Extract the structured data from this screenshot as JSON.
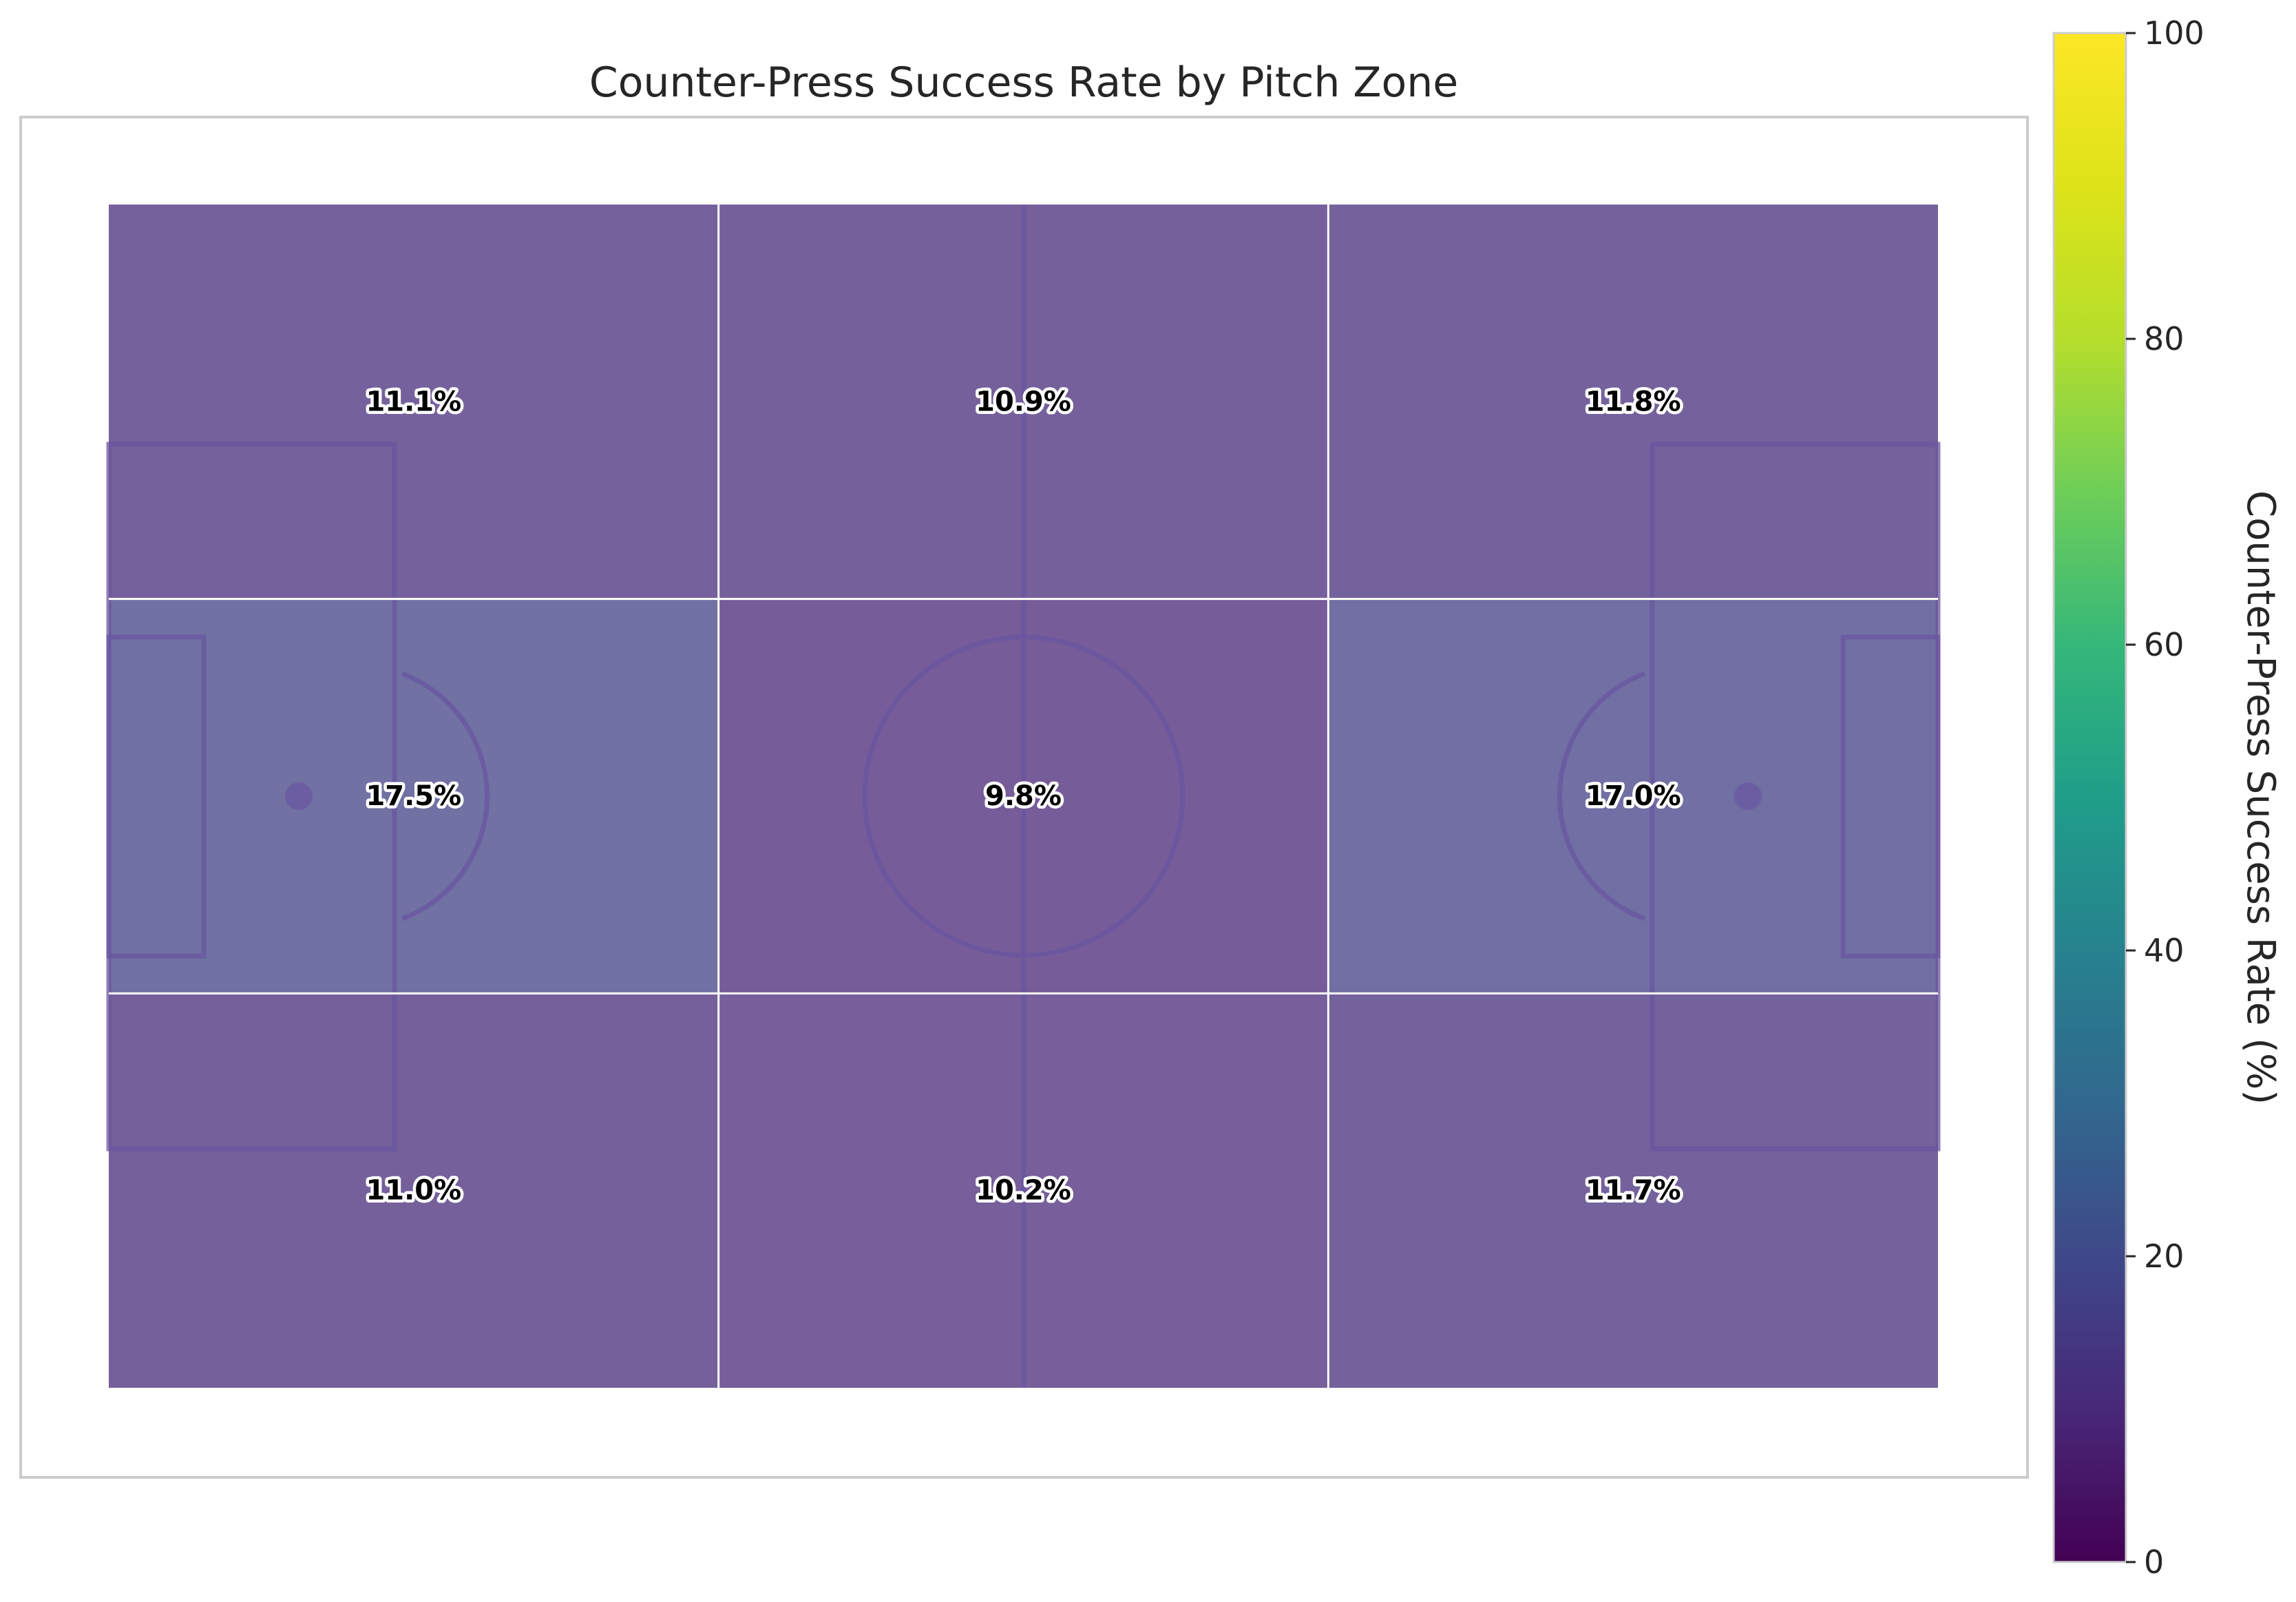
{
  "chart_data": {
    "type": "heatmap",
    "title": "Counter-Press Success Rate by Pitch Zone",
    "colormap": "viridis",
    "rows": [
      "top",
      "middle",
      "bottom"
    ],
    "columns": [
      "left",
      "center",
      "right"
    ],
    "values": [
      [
        11.1,
        10.9,
        11.8
      ],
      [
        17.5,
        9.8,
        17.0
      ],
      [
        11.0,
        10.2,
        11.7
      ]
    ],
    "labels": [
      [
        "11.1%",
        "10.9%",
        "11.8%"
      ],
      [
        "17.5%",
        "9.8%",
        "17.0%"
      ],
      [
        "11.0%",
        "10.2%",
        "11.7%"
      ]
    ],
    "colorbar": {
      "label": "Counter-Press Success Rate (%)",
      "range": [
        0,
        100
      ],
      "ticks": [
        "0",
        "20",
        "40",
        "60",
        "80",
        "100"
      ]
    },
    "pitch_line_color": "#6a55a0",
    "grid": true
  }
}
